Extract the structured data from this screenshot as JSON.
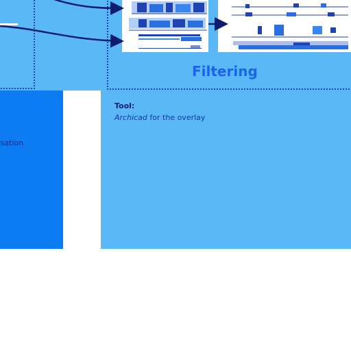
{
  "filtering": {
    "label": "Filtering"
  },
  "left_box": {
    "partial_text": "risation"
  },
  "tool": {
    "heading": "Tool:",
    "software": "Archicad",
    "purpose": " for the overlay"
  },
  "colors": {
    "light_blue": "#5ab8f6",
    "mid_blue": "#0d7cf2",
    "dark_blue": "#1f43b0",
    "accent_blue": "#1c63e8"
  }
}
